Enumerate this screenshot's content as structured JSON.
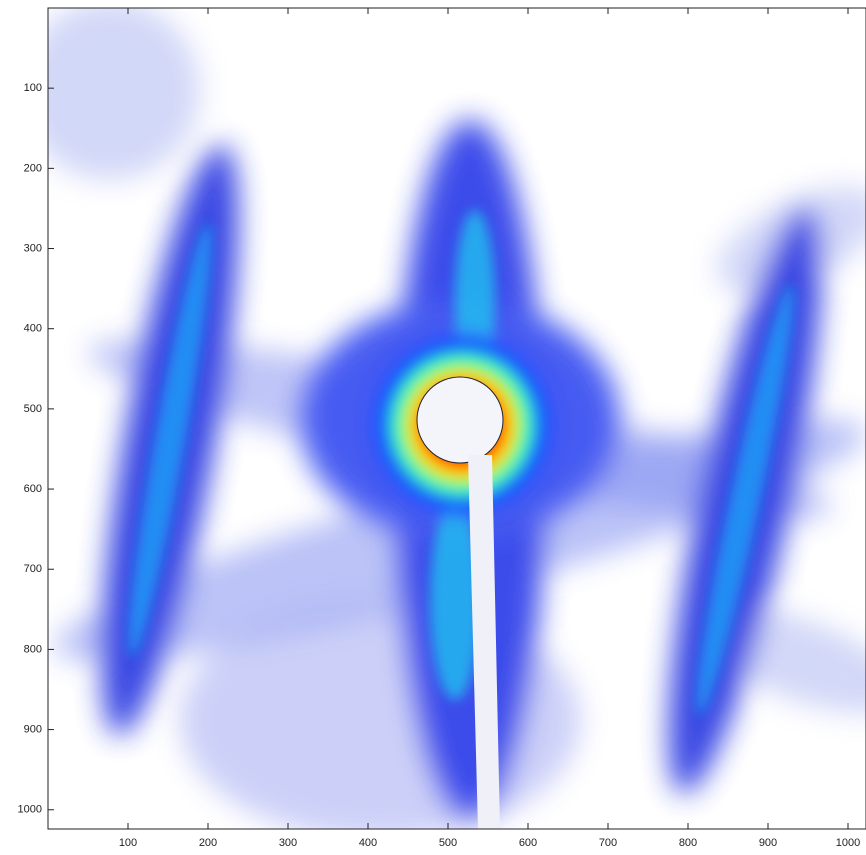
{
  "chart_data": {
    "type": "image",
    "xlim": [
      0,
      1020
    ],
    "xticks": [
      100,
      200,
      300,
      400,
      500,
      600,
      700,
      800,
      900,
      1000
    ],
    "ylim": [
      0,
      1024
    ],
    "yticks": [
      100,
      200,
      300,
      400,
      500,
      600,
      700,
      800,
      900,
      1000
    ],
    "y_reversed": true
  }
}
